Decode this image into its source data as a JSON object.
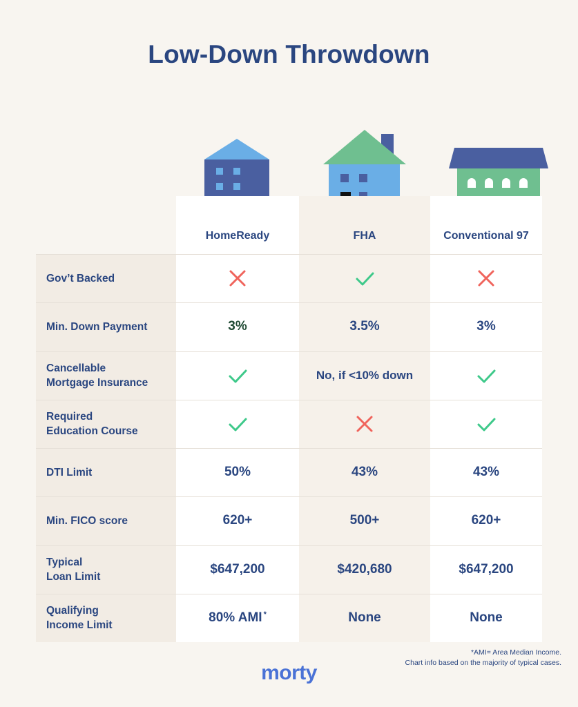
{
  "title": "Low-Down Throwdown",
  "chart_data": {
    "type": "table",
    "columns": [
      "HomeReady",
      "FHA",
      "Conventional 97"
    ],
    "rows": [
      {
        "label": "Gov’t Backed",
        "values": [
          {
            "icon": "cross"
          },
          {
            "icon": "check"
          },
          {
            "icon": "cross"
          }
        ]
      },
      {
        "label": "Min. Down Payment",
        "values": [
          {
            "text": "3%"
          },
          {
            "text": "3.5%"
          },
          {
            "text": "3%"
          }
        ]
      },
      {
        "label": "Cancellable\nMortgage Insurance",
        "values": [
          {
            "icon": "check"
          },
          {
            "text": "No, if <10% down"
          },
          {
            "icon": "check"
          }
        ]
      },
      {
        "label": "Required\nEducation Course",
        "values": [
          {
            "icon": "check"
          },
          {
            "icon": "cross"
          },
          {
            "icon": "check"
          }
        ]
      },
      {
        "label": "DTI Limit",
        "values": [
          {
            "text": "50%"
          },
          {
            "text": "43%"
          },
          {
            "text": "43%"
          }
        ]
      },
      {
        "label": "Min. FICO score",
        "values": [
          {
            "text": "620+"
          },
          {
            "text": "500+"
          },
          {
            "text": "620+"
          }
        ]
      },
      {
        "label": "Typical\nLoan Limit",
        "values": [
          {
            "text": "$647,200"
          },
          {
            "text": "$420,680"
          },
          {
            "text": "$647,200"
          }
        ]
      },
      {
        "label": "Qualifying\nIncome Limit",
        "values": [
          {
            "text": "80% AMI",
            "sup": "*"
          },
          {
            "text": "None"
          },
          {
            "text": "None"
          }
        ]
      }
    ]
  },
  "icons": {
    "check": "check-icon",
    "cross": "cross-icon"
  },
  "colors": {
    "title": "#2a4680",
    "check": "#3ec98a",
    "cross": "#f0645c",
    "logo": "#4a72d6",
    "background": "#f8f5f0"
  },
  "footnote": {
    "line1": "*AMI= Area Median Income.",
    "line2": "Chart info based on the majority of typical  cases."
  },
  "logo": "morty"
}
